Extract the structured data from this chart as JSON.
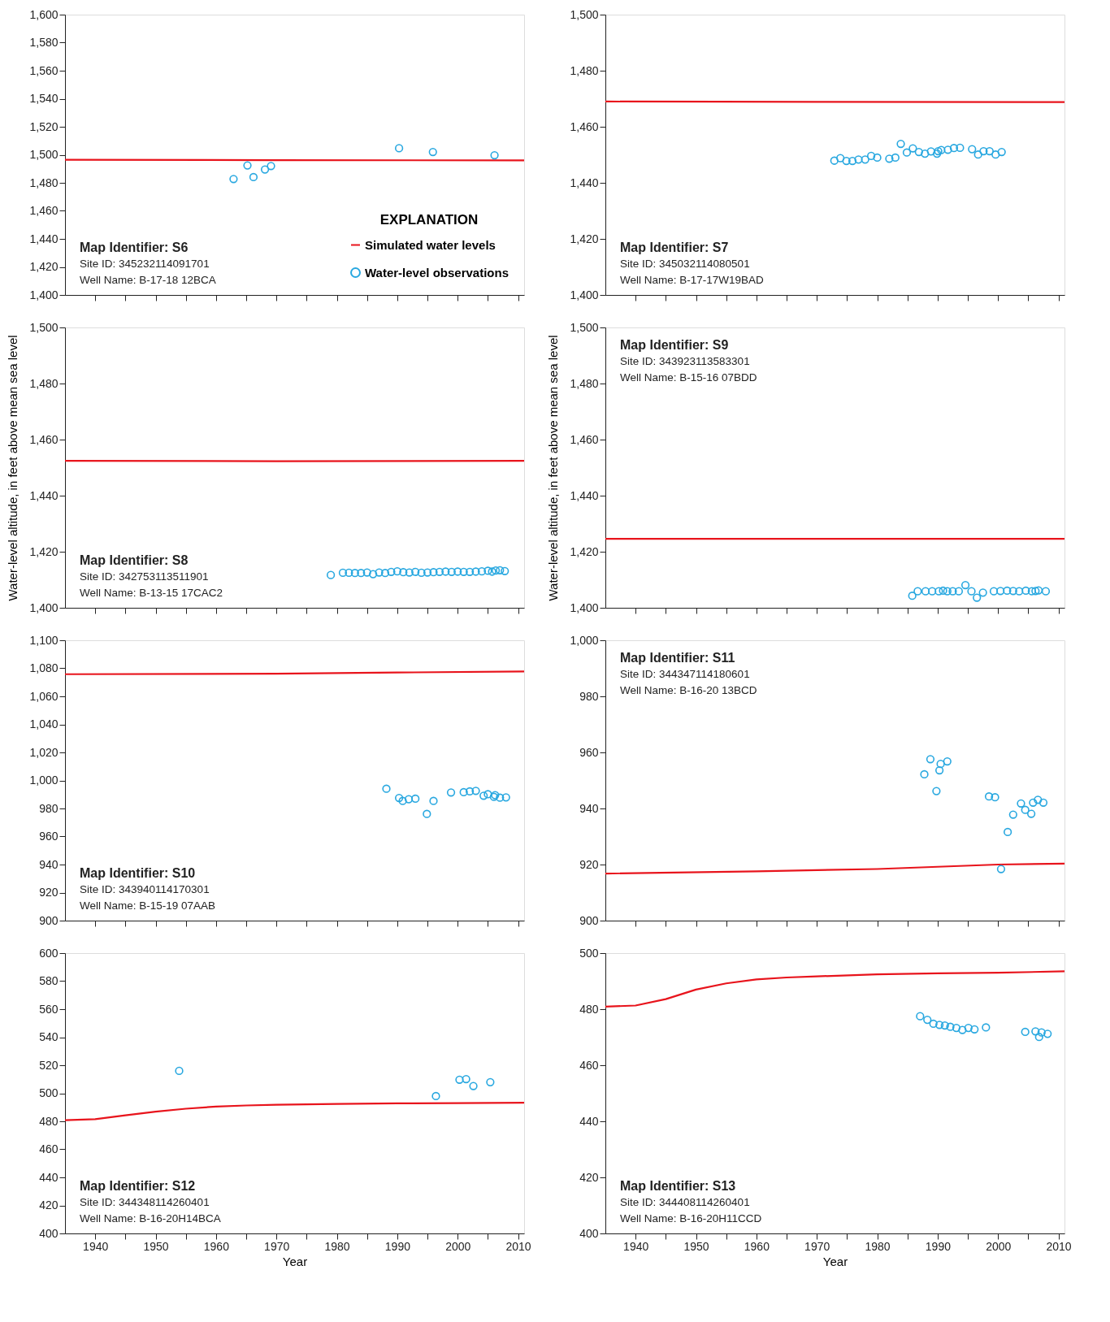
{
  "chart_data": [
    {
      "type": "scatter",
      "xlim": [
        1935,
        2011
      ],
      "ylim": [
        1400,
        1600
      ],
      "yticks": [
        {
          "value": 1400,
          "label": "1,400"
        },
        {
          "value": 1420,
          "label": "1,420"
        },
        {
          "value": 1440,
          "label": "1,440"
        },
        {
          "value": 1460,
          "label": "1,460"
        },
        {
          "value": 1480,
          "label": "1,480"
        },
        {
          "value": 1500,
          "label": "1,500"
        },
        {
          "value": 1520,
          "label": "1,520"
        },
        {
          "value": 1540,
          "label": "1,540"
        },
        {
          "value": 1560,
          "label": "1,560"
        },
        {
          "value": 1580,
          "label": "1,580"
        },
        {
          "value": 1600,
          "label": "1,600"
        }
      ],
      "xticks": [
        {
          "value": 1940,
          "label": null
        },
        {
          "value": 1945,
          "label": null
        },
        {
          "value": 1950,
          "label": null
        },
        {
          "value": 1955,
          "label": null
        },
        {
          "value": 1960,
          "label": null
        },
        {
          "value": 1965,
          "label": null
        },
        {
          "value": 1970,
          "label": null
        },
        {
          "value": 1975,
          "label": null
        },
        {
          "value": 1980,
          "label": null
        },
        {
          "value": 1985,
          "label": null
        },
        {
          "value": 1990,
          "label": null
        },
        {
          "value": 1995,
          "label": null
        },
        {
          "value": 2000,
          "label": null
        },
        {
          "value": 2005,
          "label": null
        },
        {
          "value": 2010,
          "label": null
        }
      ],
      "tick_labels": "y",
      "grid": false,
      "marker": "circle",
      "legend": "bottom right",
      "legend_title": "EXPLANATION",
      "annotations": [
        "Map Identifier: S6",
        "Site ID: 345232114091701",
        "Well Name: B-17-18 12BCA"
      ],
      "series": [
        {
          "name": "Simulated water levels",
          "type": "line",
          "marker": "none",
          "color": "#e8141c",
          "x": [
            1935,
            1970,
            2011
          ],
          "values": [
            1496.4,
            1496.2,
            1496.0
          ]
        },
        {
          "name": "Water-level observations",
          "type": "scatter",
          "color": "#29a8e0",
          "x": [
            1962.9,
            1965.2,
            1966.2,
            1968.1,
            1969.1,
            1990.3,
            1995.9,
            2006.1
          ],
          "values": [
            1482.7,
            1492.4,
            1484.1,
            1489.5,
            1492.0,
            1504.7,
            1502.0,
            1499.7
          ]
        }
      ]
    },
    {
      "type": "scatter",
      "xlim": [
        1935,
        2011
      ],
      "ylim": [
        1400,
        1500
      ],
      "yticks": [
        {
          "value": 1400,
          "label": "1,400"
        },
        {
          "value": 1420,
          "label": "1,420"
        },
        {
          "value": 1440,
          "label": "1,440"
        },
        {
          "value": 1460,
          "label": "1,460"
        },
        {
          "value": 1480,
          "label": "1,480"
        },
        {
          "value": 1500,
          "label": "1,500"
        }
      ],
      "xticks": [
        {
          "value": 1940,
          "label": null
        },
        {
          "value": 1945,
          "label": null
        },
        {
          "value": 1950,
          "label": null
        },
        {
          "value": 1955,
          "label": null
        },
        {
          "value": 1960,
          "label": null
        },
        {
          "value": 1965,
          "label": null
        },
        {
          "value": 1970,
          "label": null
        },
        {
          "value": 1975,
          "label": null
        },
        {
          "value": 1980,
          "label": null
        },
        {
          "value": 1985,
          "label": null
        },
        {
          "value": 1990,
          "label": null
        },
        {
          "value": 1995,
          "label": null
        },
        {
          "value": 2000,
          "label": null
        },
        {
          "value": 2005,
          "label": null
        },
        {
          "value": 2010,
          "label": null
        }
      ],
      "tick_labels": "y",
      "grid": false,
      "marker": "circle",
      "annotations": [
        "Map Identifier: S7",
        "Site ID: 345032114080501",
        "Well Name: B-17-17W19BAD"
      ],
      "series": [
        {
          "type": "line",
          "marker": "none",
          "color": "#e8141c",
          "x": [
            1935,
            1970,
            2011
          ],
          "values": [
            1469.0,
            1468.9,
            1468.8
          ]
        },
        {
          "type": "scatter",
          "color": "#29a8e0",
          "x": [
            1972.9,
            1973.9,
            1974.9,
            1975.9,
            1976.9,
            1978.0,
            1979.0,
            1980.0,
            1982.0,
            1983.0,
            1983.9,
            1984.9,
            1985.9,
            1986.9,
            1987.9,
            1988.9,
            1989.9,
            1990.1,
            1990.6,
            1991.7,
            1992.7,
            1993.7,
            1995.7,
            1996.7,
            1997.6,
            1998.6,
            1999.6,
            2000.6
          ],
          "values": [
            1447.9,
            1448.8,
            1447.8,
            1447.8,
            1448.3,
            1448.3,
            1449.6,
            1449.0,
            1448.6,
            1449.0,
            1453.9,
            1450.8,
            1452.3,
            1451.0,
            1450.4,
            1451.2,
            1450.4,
            1451.3,
            1451.7,
            1451.8,
            1452.4,
            1452.5,
            1452.0,
            1450.1,
            1451.3,
            1451.3,
            1450.1,
            1451.0
          ]
        }
      ]
    },
    {
      "type": "scatter",
      "xlim": [
        1935,
        2011
      ],
      "ylim": [
        1400,
        1500
      ],
      "yticks": [
        {
          "value": 1400,
          "label": "1,400"
        },
        {
          "value": 1420,
          "label": "1,420"
        },
        {
          "value": 1440,
          "label": "1,440"
        },
        {
          "value": 1460,
          "label": "1,460"
        },
        {
          "value": 1480,
          "label": "1,480"
        },
        {
          "value": 1500,
          "label": "1,500"
        }
      ],
      "xticks": [
        {
          "value": 1940,
          "label": null
        },
        {
          "value": 1945,
          "label": null
        },
        {
          "value": 1950,
          "label": null
        },
        {
          "value": 1955,
          "label": null
        },
        {
          "value": 1960,
          "label": null
        },
        {
          "value": 1965,
          "label": null
        },
        {
          "value": 1970,
          "label": null
        },
        {
          "value": 1975,
          "label": null
        },
        {
          "value": 1980,
          "label": null
        },
        {
          "value": 1985,
          "label": null
        },
        {
          "value": 1990,
          "label": null
        },
        {
          "value": 1995,
          "label": null
        },
        {
          "value": 2000,
          "label": null
        },
        {
          "value": 2005,
          "label": null
        },
        {
          "value": 2010,
          "label": null
        }
      ],
      "tick_labels": "y",
      "grid": false,
      "marker": "circle",
      "ylabel": "Water-level altitude, in feet above mean sea level",
      "annotations": [
        "Map Identifier: S8",
        "Site ID: 342753113511901",
        "Well Name: B-13-15 17CAC2"
      ],
      "series": [
        {
          "type": "line",
          "marker": "none",
          "color": "#e8141c",
          "x": [
            1935,
            1970,
            2011
          ],
          "values": [
            1452.4,
            1452.3,
            1452.4
          ]
        },
        {
          "type": "scatter",
          "color": "#29a8e0",
          "x": [
            1979.0,
            1981,
            1982,
            1983,
            1984,
            1985,
            1986,
            1987,
            1988,
            1989,
            1990,
            1991,
            1992,
            1993,
            1994,
            1995,
            1996,
            1997,
            1998,
            1999,
            2000,
            2001,
            2002,
            2003,
            2004,
            2005,
            2005.7,
            2006.3,
            2007,
            2007.8
          ],
          "values": [
            1411.7,
            1412.5,
            1412.5,
            1412.4,
            1412.4,
            1412.6,
            1412.0,
            1412.6,
            1412.4,
            1412.8,
            1413.0,
            1412.7,
            1412.6,
            1412.8,
            1412.5,
            1412.6,
            1412.7,
            1412.8,
            1412.9,
            1412.8,
            1412.9,
            1412.8,
            1412.8,
            1412.9,
            1413.0,
            1413.2,
            1412.9,
            1413.3,
            1413.4,
            1413.1
          ]
        }
      ]
    },
    {
      "type": "scatter",
      "xlim": [
        1935,
        2011
      ],
      "ylim": [
        1400,
        1500
      ],
      "yticks": [
        {
          "value": 1400,
          "label": "1,400"
        },
        {
          "value": 1420,
          "label": "1,420"
        },
        {
          "value": 1440,
          "label": "1,440"
        },
        {
          "value": 1460,
          "label": "1,460"
        },
        {
          "value": 1480,
          "label": "1,480"
        },
        {
          "value": 1500,
          "label": "1,500"
        }
      ],
      "xticks": [
        {
          "value": 1940,
          "label": null
        },
        {
          "value": 1945,
          "label": null
        },
        {
          "value": 1950,
          "label": null
        },
        {
          "value": 1955,
          "label": null
        },
        {
          "value": 1960,
          "label": null
        },
        {
          "value": 1965,
          "label": null
        },
        {
          "value": 1970,
          "label": null
        },
        {
          "value": 1975,
          "label": null
        },
        {
          "value": 1980,
          "label": null
        },
        {
          "value": 1985,
          "label": null
        },
        {
          "value": 1990,
          "label": null
        },
        {
          "value": 1995,
          "label": null
        },
        {
          "value": 2000,
          "label": null
        },
        {
          "value": 2005,
          "label": null
        },
        {
          "value": 2010,
          "label": null
        }
      ],
      "tick_labels": "y",
      "grid": false,
      "marker": "circle",
      "ylabel": "Water-level altitude, in feet above mean sea level",
      "annotations": [
        "Map Identifier: S9",
        "Site ID: 343923113583301",
        "Well Name: B-15-16 07BDD"
      ],
      "series": [
        {
          "type": "line",
          "marker": "none",
          "color": "#e8141c",
          "x": [
            1935,
            1970,
            2011
          ],
          "values": [
            1424.6,
            1424.6,
            1424.6
          ]
        },
        {
          "type": "scatter",
          "color": "#29a8e0",
          "x": [
            1985.8,
            1986.7,
            1988.0,
            1989.1,
            1990.2,
            1990.9,
            1991.6,
            1992.5,
            1993.5,
            1994.6,
            1995.6,
            1996.5,
            1997.5,
            1999.3,
            2000.4,
            2001.5,
            2002.5,
            2003.5,
            2004.6,
            2005.6,
            2006.2,
            2006.7,
            2007.9
          ],
          "values": [
            1404.3,
            1405.9,
            1405.9,
            1405.9,
            1405.9,
            1406.1,
            1405.9,
            1405.9,
            1405.9,
            1408.1,
            1405.9,
            1403.6,
            1405.4,
            1405.9,
            1406.0,
            1406.1,
            1406.0,
            1405.9,
            1406.1,
            1405.9,
            1406.0,
            1406.2,
            1405.9
          ]
        }
      ]
    },
    {
      "type": "scatter",
      "xlim": [
        1935,
        2011
      ],
      "ylim": [
        900,
        1100
      ],
      "yticks": [
        900,
        920,
        940,
        960,
        980,
        {
          "value": 1000,
          "label": "1,000"
        },
        {
          "value": 1020,
          "label": "1,020"
        },
        {
          "value": 1040,
          "label": "1,040"
        },
        {
          "value": 1060,
          "label": "1,060"
        },
        {
          "value": 1080,
          "label": "1,080"
        },
        {
          "value": 1100,
          "label": "1,100"
        }
      ],
      "xticks": [
        {
          "value": 1940,
          "label": null
        },
        {
          "value": 1945,
          "label": null
        },
        {
          "value": 1950,
          "label": null
        },
        {
          "value": 1955,
          "label": null
        },
        {
          "value": 1960,
          "label": null
        },
        {
          "value": 1965,
          "label": null
        },
        {
          "value": 1970,
          "label": null
        },
        {
          "value": 1975,
          "label": null
        },
        {
          "value": 1980,
          "label": null
        },
        {
          "value": 1985,
          "label": null
        },
        {
          "value": 1990,
          "label": null
        },
        {
          "value": 1995,
          "label": null
        },
        {
          "value": 2000,
          "label": null
        },
        {
          "value": 2005,
          "label": null
        },
        {
          "value": 2010,
          "label": null
        }
      ],
      "tick_labels": "y",
      "grid": false,
      "marker": "circle",
      "annotations": [
        "Map Identifier: S10",
        "Site ID: 343940114170301",
        "Well Name: B-15-19 07AAB"
      ],
      "series": [
        {
          "type": "line",
          "marker": "none",
          "color": "#e8141c",
          "x": [
            1935,
            1970,
            1990,
            2011
          ],
          "values": [
            1075.8,
            1076.2,
            1077.0,
            1077.8
          ]
        },
        {
          "type": "scatter",
          "color": "#29a8e0",
          "x": [
            1988.2,
            1990.3,
            1990.9,
            1991.9,
            1993.0,
            1994.9,
            1996.0,
            1998.9,
            2001.0,
            2002.0,
            2003.0,
            2004.3,
            2005.0,
            2006.0,
            2006.2,
            2007.0,
            2008.0
          ],
          "values": [
            994.1,
            987.5,
            985.4,
            986.6,
            987.0,
            976.1,
            985.4,
            991.4,
            991.6,
            992.2,
            992.6,
            989.1,
            990.2,
            988.3,
            989.5,
            987.7,
            987.9
          ]
        }
      ]
    },
    {
      "type": "scatter",
      "xlim": [
        1935,
        2011
      ],
      "ylim": [
        900,
        1000
      ],
      "yticks": [
        900,
        920,
        940,
        960,
        980,
        {
          "value": 1000,
          "label": "1,000"
        }
      ],
      "xticks": [
        {
          "value": 1940,
          "label": null
        },
        {
          "value": 1945,
          "label": null
        },
        {
          "value": 1950,
          "label": null
        },
        {
          "value": 1955,
          "label": null
        },
        {
          "value": 1960,
          "label": null
        },
        {
          "value": 1965,
          "label": null
        },
        {
          "value": 1970,
          "label": null
        },
        {
          "value": 1975,
          "label": null
        },
        {
          "value": 1980,
          "label": null
        },
        {
          "value": 1985,
          "label": null
        },
        {
          "value": 1990,
          "label": null
        },
        {
          "value": 1995,
          "label": null
        },
        {
          "value": 2000,
          "label": null
        },
        {
          "value": 2005,
          "label": null
        },
        {
          "value": 2010,
          "label": null
        }
      ],
      "tick_labels": "y",
      "grid": false,
      "marker": "circle",
      "annotations": [
        "Map Identifier: S11",
        "Site ID: 344347114180601",
        "Well Name: B-16-20 13BCD"
      ],
      "series": [
        {
          "type": "line",
          "marker": "none",
          "color": "#e8141c",
          "x": [
            1935,
            1960,
            1980,
            1990,
            2000,
            2011
          ],
          "values": [
            916.8,
            917.6,
            918.4,
            919.2,
            920.0,
            920.3
          ]
        },
        {
          "type": "scatter",
          "color": "#29a8e0",
          "x": [
            1987.8,
            1988.8,
            1989.8,
            1990.3,
            1990.5,
            1991.6,
            1998.5,
            1999.5,
            2000.5,
            2001.6,
            2002.5,
            2003.8,
            2004.5,
            2005.5,
            2005.8,
            2006.6,
            2007.5
          ],
          "values": [
            952.2,
            957.6,
            946.2,
            953.6,
            955.9,
            956.8,
            944.3,
            944.0,
            918.4,
            931.6,
            937.8,
            941.8,
            939.5,
            938.1,
            942.1,
            943.1,
            942.1
          ]
        }
      ]
    },
    {
      "type": "scatter",
      "xlim": [
        1935,
        2011
      ],
      "ylim": [
        400,
        600
      ],
      "yticks": [
        400,
        420,
        440,
        460,
        480,
        500,
        520,
        540,
        560,
        580,
        600
      ],
      "xticks": [
        1940,
        {
          "value": 1945,
          "label": null
        },
        1950,
        {
          "value": 1955,
          "label": null
        },
        1960,
        {
          "value": 1965,
          "label": null
        },
        1970,
        {
          "value": 1975,
          "label": null
        },
        1980,
        {
          "value": 1985,
          "label": null
        },
        1990,
        {
          "value": 1995,
          "label": null
        },
        2000,
        {
          "value": 2005,
          "label": null
        },
        2010
      ],
      "grid": false,
      "marker": "circle",
      "xlabel": "Year",
      "annotations": [
        "Map Identifier: S12",
        "Site ID: 344348114260401",
        "Well Name: B-16-20H14BCA"
      ],
      "series": [
        {
          "type": "line",
          "marker": "none",
          "color": "#e8141c",
          "x": [
            1935,
            1940,
            1945,
            1950,
            1955,
            1960,
            1965,
            1970,
            1980,
            1990,
            2000,
            2011
          ],
          "values": [
            480.8,
            481.5,
            484.3,
            486.9,
            489.0,
            490.5,
            491.3,
            491.8,
            492.4,
            492.8,
            493.0,
            493.3
          ]
        },
        {
          "type": "scatter",
          "color": "#29a8e0",
          "x": [
            1953.9,
            1996.4,
            2000.3,
            2001.4,
            2002.6,
            2005.4
          ],
          "values": [
            516.0,
            498.0,
            509.7,
            510.1,
            505.2,
            507.9
          ]
        }
      ]
    },
    {
      "type": "scatter",
      "xlim": [
        1935,
        2011
      ],
      "ylim": [
        400,
        500
      ],
      "yticks": [
        400,
        420,
        440,
        460,
        480,
        500
      ],
      "xticks": [
        1940,
        {
          "value": 1945,
          "label": null
        },
        1950,
        {
          "value": 1955,
          "label": null
        },
        1960,
        {
          "value": 1965,
          "label": null
        },
        1970,
        {
          "value": 1975,
          "label": null
        },
        1980,
        {
          "value": 1985,
          "label": null
        },
        1990,
        {
          "value": 1995,
          "label": null
        },
        2000,
        {
          "value": 2005,
          "label": null
        },
        2010
      ],
      "grid": false,
      "marker": "circle",
      "xlabel": "Year",
      "annotations": [
        "Map Identifier: S13",
        "Site ID: 344408114260401",
        "Well Name: B-16-20H11CCD"
      ],
      "series": [
        {
          "type": "line",
          "marker": "none",
          "color": "#e8141c",
          "x": [
            1935,
            1940,
            1945,
            1950,
            1955,
            1960,
            1965,
            1970,
            1980,
            1990,
            2000,
            2011
          ],
          "values": [
            480.9,
            481.3,
            483.6,
            487.0,
            489.2,
            490.6,
            491.3,
            491.7,
            492.4,
            492.8,
            493.0,
            493.5
          ]
        },
        {
          "type": "scatter",
          "color": "#29a8e0",
          "x": [
            1987.1,
            1988.3,
            1989.3,
            1990.3,
            1991.2,
            1992.1,
            1993.1,
            1994.1,
            1995.1,
            1996.1,
            1998.0,
            2004.5,
            2006.2,
            2006.8,
            2007.2,
            2008.2
          ],
          "values": [
            477.5,
            476.2,
            474.8,
            474.4,
            474.2,
            473.7,
            473.3,
            472.6,
            473.3,
            472.8,
            473.5,
            471.9,
            472.1,
            470.1,
            471.7,
            471.2
          ]
        }
      ]
    }
  ]
}
